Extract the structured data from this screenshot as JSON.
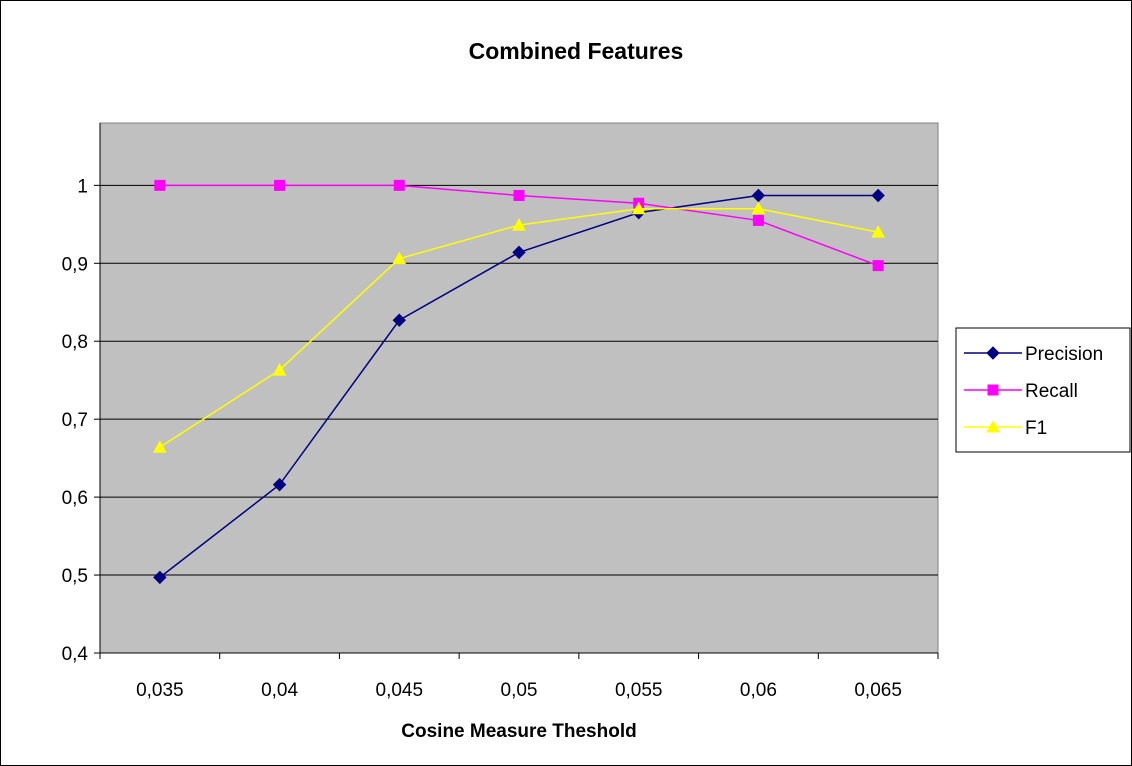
{
  "chart_data": {
    "type": "line",
    "title": "Combined Features",
    "xlabel": "Cosine Measure Theshold",
    "ylabel": "",
    "categories": [
      "0,035",
      "0,04",
      "0,045",
      "0,05",
      "0,055",
      "0,06",
      "0,065"
    ],
    "ylim": [
      0.4,
      1.08
    ],
    "yticks": [
      0.4,
      0.5,
      0.6,
      0.7,
      0.8,
      0.9,
      1.0
    ],
    "ytick_labels": [
      "0,4",
      "0,5",
      "0,6",
      "0,7",
      "0,8",
      "0,9",
      "1"
    ],
    "grid": "horizontal",
    "legend_position": "right",
    "plot_background": "#c0c0c0",
    "series": [
      {
        "name": "Precision",
        "color": "#000080",
        "marker": "diamond",
        "values": [
          0.497,
          0.616,
          0.827,
          0.914,
          0.965,
          0.987,
          0.987
        ]
      },
      {
        "name": "Recall",
        "color": "#ff00ff",
        "marker": "square",
        "values": [
          1.0,
          1.0,
          1.0,
          0.987,
          0.977,
          0.955,
          0.897
        ]
      },
      {
        "name": "F1",
        "color": "#ffff00",
        "marker": "triangle",
        "values": [
          0.664,
          0.763,
          0.906,
          0.949,
          0.97,
          0.97,
          0.94
        ]
      }
    ]
  }
}
